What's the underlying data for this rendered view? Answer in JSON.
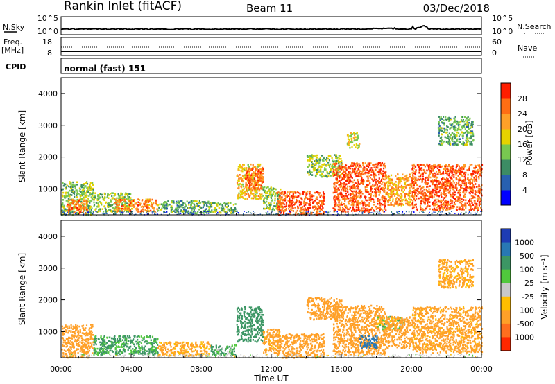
{
  "header": {
    "station": "Rankin Inlet (fitACF)",
    "beam": "Beam 11",
    "date": "03/Dec/2018"
  },
  "top_panels": {
    "nsky_label": "N.Sky",
    "nsky_ticks": [
      "10^5",
      "10^0"
    ],
    "nsearch_ticks": [
      "10^5",
      "10^0"
    ],
    "nsearch_label": "N.Search",
    "freq_label": "Freq.",
    "freq_unit": "[MHz]",
    "freq_ticks": [
      "18",
      "8"
    ],
    "nave_ticks": [
      "60",
      "0"
    ],
    "nave_label": "Nave",
    "cpid_label": "CPID",
    "cpid_value": "normal (fast) 151"
  },
  "axes": {
    "ylabel": "Slant Range [km]",
    "xlabel": "Time UT",
    "x_ticks": [
      "00:00",
      "04:00",
      "08:00",
      "12:00",
      "16:00",
      "20:00",
      "00:00"
    ],
    "y_ticks": [
      "1000",
      "2000",
      "3000",
      "4000"
    ]
  },
  "colorbars": {
    "power": {
      "label": "Power [dB]",
      "ticks": [
        "4",
        "8",
        "12",
        "16",
        "20",
        "24",
        "28"
      ],
      "colors": [
        "#0000ff",
        "#2860b0",
        "#3c8c64",
        "#78c850",
        "#e6d200",
        "#ffa028",
        "#ff6e14",
        "#ff1e00"
      ]
    },
    "velocity": {
      "label": "Velocity [m s⁻¹]",
      "ticks": [
        "1000",
        "500",
        "100",
        "25",
        "-25",
        "-100",
        "-500",
        "-1000"
      ],
      "colors": [
        "#1e3cb4",
        "#2878b4",
        "#3c9664",
        "#50c83c",
        "#c8c8c8",
        "#ffbe00",
        "#ffa028",
        "#ff6e1e",
        "#ff2800"
      ]
    }
  },
  "chart_data": [
    {
      "type": "heatmap",
      "panel": "power",
      "x_range": [
        "00:00",
        "24:00"
      ],
      "y_range_km": [
        180,
        4500
      ],
      "value_label": "Power [dB]",
      "clusters": [
        {
          "t0": 0.0,
          "t1": 1.8,
          "r0": 200,
          "r1": 1250,
          "v": 14
        },
        {
          "t0": 0.3,
          "t1": 1.5,
          "r0": 250,
          "r1": 700,
          "v": 25
        },
        {
          "t0": 1.8,
          "t1": 4.0,
          "r0": 300,
          "r1": 900,
          "v": 15
        },
        {
          "t0": 3.0,
          "t1": 5.5,
          "r0": 300,
          "r1": 700,
          "v": 24
        },
        {
          "t0": 5.5,
          "t1": 8.5,
          "r0": 250,
          "r1": 650,
          "v": 12
        },
        {
          "t0": 8.5,
          "t1": 10.0,
          "r0": 250,
          "r1": 600,
          "v": 13
        },
        {
          "t0": 10.0,
          "t1": 11.5,
          "r0": 700,
          "r1": 1800,
          "v": 20
        },
        {
          "t0": 10.5,
          "t1": 11.5,
          "r0": 1000,
          "r1": 1700,
          "v": 27
        },
        {
          "t0": 11.5,
          "t1": 12.5,
          "r0": 350,
          "r1": 1100,
          "v": 14
        },
        {
          "t0": 12.3,
          "t1": 15.0,
          "r0": 200,
          "r1": 950,
          "v": 27
        },
        {
          "t0": 14.0,
          "t1": 16.0,
          "r0": 1400,
          "r1": 2100,
          "v": 15
        },
        {
          "t0": 15.5,
          "t1": 18.5,
          "r0": 300,
          "r1": 1850,
          "v": 27
        },
        {
          "t0": 16.3,
          "t1": 17.0,
          "r0": 2300,
          "r1": 2800,
          "v": 17
        },
        {
          "t0": 18.5,
          "t1": 20.0,
          "r0": 500,
          "r1": 1500,
          "v": 22
        },
        {
          "t0": 20.0,
          "t1": 24.0,
          "r0": 350,
          "r1": 1800,
          "v": 27
        },
        {
          "t0": 21.5,
          "t1": 23.5,
          "r0": 2400,
          "r1": 3300,
          "v": 12
        }
      ]
    },
    {
      "type": "heatmap",
      "panel": "velocity",
      "x_range": [
        "00:00",
        "24:00"
      ],
      "y_range_km": [
        180,
        4500
      ],
      "value_label": "Velocity [m s⁻¹]",
      "clusters": [
        {
          "t0": 0.0,
          "t1": 1.8,
          "r0": 200,
          "r1": 1250,
          "v": -300
        },
        {
          "t0": 1.8,
          "t1": 5.5,
          "r0": 300,
          "r1": 900,
          "v": 150
        },
        {
          "t0": 5.5,
          "t1": 8.5,
          "r0": 250,
          "r1": 700,
          "v": -150
        },
        {
          "t0": 8.5,
          "t1": 10.0,
          "r0": 250,
          "r1": 600,
          "v": 120
        },
        {
          "t0": 10.0,
          "t1": 11.5,
          "r0": 700,
          "r1": 1800,
          "v": 300
        },
        {
          "t0": 11.5,
          "t1": 12.5,
          "r0": 350,
          "r1": 1100,
          "v": -200
        },
        {
          "t0": 12.3,
          "t1": 15.0,
          "r0": 200,
          "r1": 950,
          "v": -250
        },
        {
          "t0": 14.0,
          "t1": 16.0,
          "r0": 1400,
          "r1": 2100,
          "v": -300
        },
        {
          "t0": 15.5,
          "t1": 18.5,
          "r0": 300,
          "r1": 1850,
          "v": -350
        },
        {
          "t0": 17.0,
          "t1": 18.0,
          "r0": 500,
          "r1": 900,
          "v": 700
        },
        {
          "t0": 18.0,
          "t1": 19.5,
          "r0": 1100,
          "r1": 1500,
          "v": 0
        },
        {
          "t0": 18.5,
          "t1": 20.0,
          "r0": 500,
          "r1": 1500,
          "v": -250
        },
        {
          "t0": 20.0,
          "t1": 24.0,
          "r0": 350,
          "r1": 1800,
          "v": -200
        },
        {
          "t0": 21.5,
          "t1": 23.5,
          "r0": 2400,
          "r1": 3300,
          "v": -150
        }
      ]
    }
  ]
}
